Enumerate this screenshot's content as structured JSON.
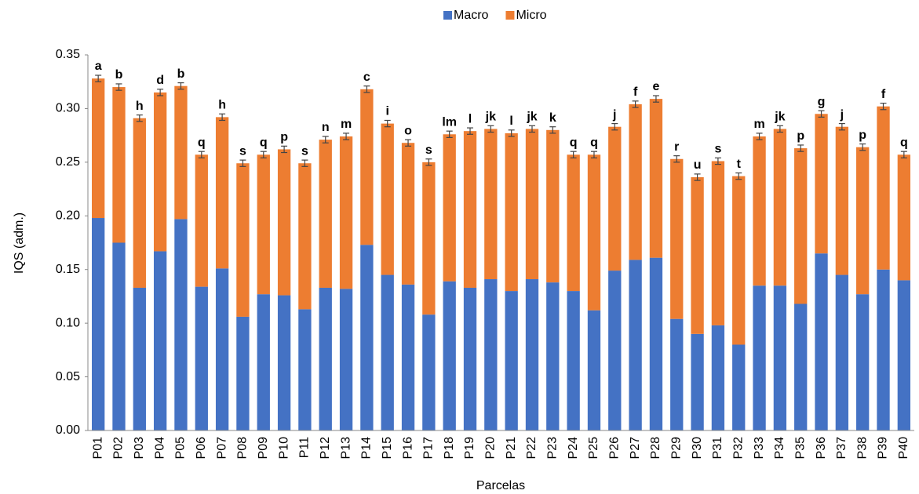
{
  "chart_data": {
    "type": "stacked_bar",
    "xlabel": "Parcelas",
    "ylabel": "IQS (adm.)",
    "categories": [
      "P01",
      "P02",
      "P03",
      "P04",
      "P05",
      "P06",
      "P07",
      "P08",
      "P09",
      "P10",
      "P11",
      "P12",
      "P13",
      "P14",
      "P15",
      "P16",
      "P17",
      "P18",
      "P19",
      "P20",
      "P21",
      "P22",
      "P23",
      "P24",
      "P25",
      "P26",
      "P27",
      "P28",
      "P29",
      "P30",
      "P31",
      "P32",
      "P33",
      "P34",
      "P35",
      "P36",
      "P37",
      "P38",
      "P39",
      "P40"
    ],
    "series": [
      {
        "name": "Macro",
        "color": "#4472c4",
        "values": [
          0.198,
          0.175,
          0.133,
          0.167,
          0.197,
          0.134,
          0.151,
          0.106,
          0.127,
          0.126,
          0.113,
          0.133,
          0.132,
          0.173,
          0.145,
          0.136,
          0.108,
          0.139,
          0.133,
          0.141,
          0.13,
          0.141,
          0.138,
          0.13,
          0.112,
          0.149,
          0.159,
          0.161,
          0.104,
          0.09,
          0.098,
          0.08,
          0.135,
          0.135,
          0.118,
          0.165,
          0.145,
          0.127,
          0.15,
          0.14
        ]
      },
      {
        "name": "Micro",
        "color": "#ed7d31",
        "values": [
          0.13,
          0.145,
          0.158,
          0.148,
          0.124,
          0.123,
          0.141,
          0.143,
          0.13,
          0.136,
          0.136,
          0.138,
          0.142,
          0.145,
          0.141,
          0.132,
          0.142,
          0.137,
          0.146,
          0.14,
          0.147,
          0.14,
          0.142,
          0.127,
          0.145,
          0.134,
          0.145,
          0.148,
          0.149,
          0.146,
          0.153,
          0.157,
          0.139,
          0.146,
          0.145,
          0.13,
          0.138,
          0.137,
          0.152,
          0.117
        ],
        "errors": [
          0.003,
          0.003,
          0.003,
          0.003,
          0.003,
          0.003,
          0.003,
          0.003,
          0.003,
          0.003,
          0.003,
          0.003,
          0.003,
          0.003,
          0.003,
          0.003,
          0.003,
          0.003,
          0.003,
          0.003,
          0.003,
          0.003,
          0.003,
          0.003,
          0.003,
          0.003,
          0.003,
          0.003,
          0.003,
          0.003,
          0.003,
          0.003,
          0.003,
          0.003,
          0.003,
          0.003,
          0.003,
          0.003,
          0.003,
          0.003
        ]
      }
    ],
    "annotations": [
      "a",
      "b",
      "h",
      "d",
      "b",
      "q",
      "h",
      "s",
      "q",
      "p",
      "s",
      "n",
      "m",
      "c",
      "i",
      "o",
      "s",
      "lm",
      "l",
      "jk",
      "l",
      "jk",
      "k",
      "q",
      "q",
      "j",
      "f",
      "e",
      "r",
      "u",
      "s",
      "t",
      "m",
      "jk",
      "p",
      "g",
      "j",
      "p",
      "f",
      "q"
    ],
    "ylim": [
      0,
      0.35
    ],
    "yticks": [
      {
        "value": 0,
        "label": "0.00"
      },
      {
        "value": 0.05,
        "label": "0.05"
      },
      {
        "value": 0.1,
        "label": "0.10"
      },
      {
        "value": 0.15,
        "label": "0.15"
      },
      {
        "value": 0.2,
        "label": "0.20"
      },
      {
        "value": 0.25,
        "label": "0.25"
      },
      {
        "value": 0.3,
        "label": "0.30"
      },
      {
        "value": 0.35,
        "label": "0.35"
      }
    ],
    "legend": "top",
    "grid": false
  }
}
